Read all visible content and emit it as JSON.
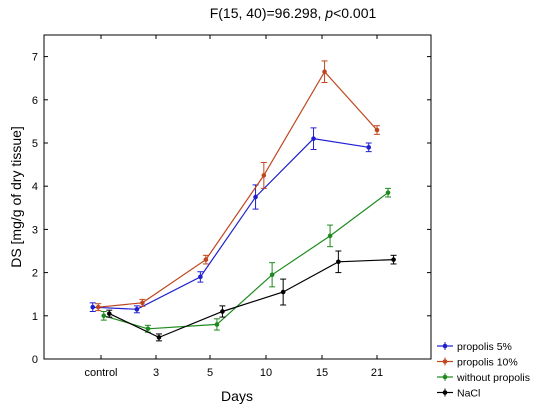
{
  "chart_data": {
    "type": "line",
    "title_prefix": "F(15, 40)=96.298, ",
    "title_p": "p",
    "title_suffix": "<0.001",
    "xlabel": "Days",
    "ylabel": "DS [mg/g of dry tissue]",
    "categories": [
      "control",
      "3",
      "5",
      "10",
      "15",
      "21"
    ],
    "ylim": [
      0,
      7.5
    ],
    "yticks": [
      0,
      1,
      2,
      3,
      4,
      5,
      6,
      7
    ],
    "grid": false,
    "legend_position": "bottom-right, outside plot",
    "series": [
      {
        "name": "propolis 5%",
        "color": "#1f1fd0",
        "x": [
          -0.15,
          0.65,
          1.8,
          2.8,
          3.85,
          4.85
        ],
        "y": [
          1.2,
          1.15,
          1.9,
          3.75,
          5.1,
          4.9
        ],
        "err": [
          0.1,
          0.08,
          0.12,
          0.28,
          0.25,
          0.1
        ]
      },
      {
        "name": "propolis 10%",
        "color": "#c0461e",
        "x": [
          -0.05,
          0.75,
          1.9,
          2.95,
          4.05,
          5.0
        ],
        "y": [
          1.2,
          1.3,
          2.3,
          4.25,
          6.65,
          5.3
        ],
        "err": [
          0.08,
          0.08,
          0.1,
          0.3,
          0.25,
          0.1
        ]
      },
      {
        "name": "without propolis",
        "color": "#1e8a1e",
        "x": [
          0.05,
          0.85,
          2.1,
          3.1,
          4.15,
          5.2
        ],
        "y": [
          1.0,
          0.7,
          0.8,
          1.95,
          2.85,
          3.85
        ],
        "err": [
          0.1,
          0.08,
          0.13,
          0.28,
          0.25,
          0.1
        ]
      },
      {
        "name": "NaCl",
        "color": "#000000",
        "x": [
          0.15,
          1.05,
          2.2,
          3.3,
          4.3,
          5.3
        ],
        "y": [
          1.05,
          0.5,
          1.1,
          1.55,
          2.25,
          2.3
        ],
        "err": [
          0.08,
          0.08,
          0.13,
          0.3,
          0.25,
          0.1
        ]
      }
    ]
  }
}
